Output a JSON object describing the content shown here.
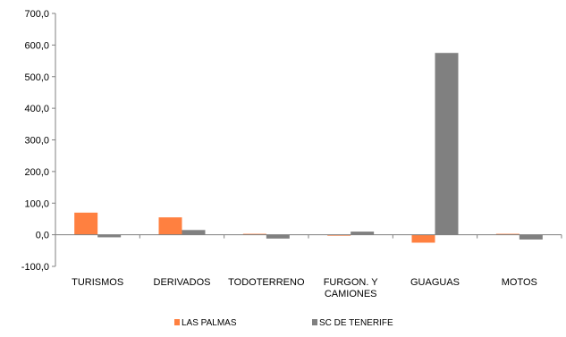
{
  "chart_data": {
    "type": "bar",
    "title": "",
    "xlabel": "",
    "ylabel": "",
    "categories": [
      [
        "TURISMOS"
      ],
      [
        "DERIVADOS"
      ],
      [
        "TODOTERRENO"
      ],
      [
        "FURGON. Y",
        "CAMIONES"
      ],
      [
        "GUAGUAS"
      ],
      [
        "MOTOS"
      ]
    ],
    "series": [
      {
        "name": "LAS PALMAS",
        "color": "#ff8040",
        "values": [
          70.0,
          55.0,
          3.0,
          -3.0,
          -25.0,
          3.0
        ]
      },
      {
        "name": "SC DE TENERIFE",
        "color": "#808080",
        "values": [
          -8.0,
          15.0,
          -12.0,
          10.0,
          575.0,
          -15.0
        ]
      }
    ],
    "ylim": [
      -100,
      700
    ],
    "yticks": [
      -100,
      0,
      100,
      200,
      300,
      400,
      500,
      600,
      700
    ],
    "ytick_labels": [
      "-100,0",
      "0,0",
      "100,0",
      "200,0",
      "300,0",
      "400,0",
      "500,0",
      "600,0",
      "700,0"
    ],
    "grid": false,
    "legend_position": "bottom"
  }
}
